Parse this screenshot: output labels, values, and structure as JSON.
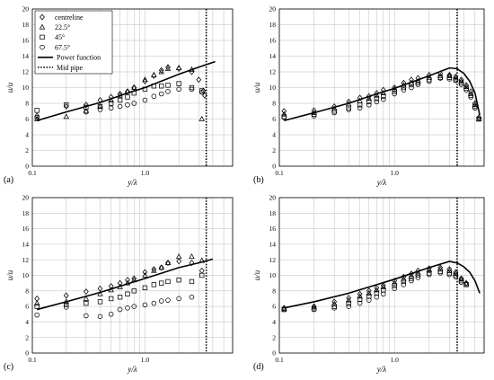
{
  "chart_data": [
    {
      "panel": "(a)",
      "type": "scatter",
      "xlabel": "y/λ",
      "ylabel": "u/u",
      "xscale": "log",
      "xlim": [
        0.1,
        6
      ],
      "ylim": [
        0,
        20
      ],
      "xticks": [
        "0.1",
        "1.0"
      ],
      "yticks": [
        "0",
        "2",
        "4",
        "6",
        "8",
        "10",
        "12",
        "14",
        "16",
        "18",
        "20"
      ],
      "grid": true,
      "legend": "top-left",
      "legend_entries": [
        "centreline",
        "22.5°",
        "45°",
        "67.5°",
        "Power function",
        "Mid pipe"
      ],
      "mid_pipe_x": 3.5,
      "series": [
        {
          "name": "centreline",
          "marker": "diamond",
          "x": [
            0.11,
            0.2,
            0.3,
            0.4,
            0.5,
            0.6,
            0.7,
            0.8,
            1.0,
            1.2,
            1.4,
            1.6,
            2.0,
            2.6,
            3.0,
            3.3,
            3.4
          ],
          "y": [
            6.4,
            7.6,
            7.8,
            8.4,
            8.8,
            9.2,
            9.5,
            10.0,
            10.8,
            11.5,
            12.2,
            12.6,
            12.4,
            12.0,
            11.0,
            9.6,
            9.0
          ]
        },
        {
          "name": "22.5°",
          "marker": "triangle",
          "x": [
            0.11,
            0.2,
            0.3,
            0.4,
            0.5,
            0.6,
            0.7,
            0.8,
            1.0,
            1.2,
            1.4,
            1.6,
            2.0,
            2.6,
            3.2
          ],
          "y": [
            6.0,
            6.3,
            7.0,
            7.6,
            8.4,
            9.0,
            9.5,
            10.0,
            11.0,
            11.6,
            12.0,
            12.4,
            12.5,
            12.3,
            6.0
          ]
        },
        {
          "name": "45°",
          "marker": "square",
          "x": [
            0.11,
            0.2,
            0.3,
            0.4,
            0.5,
            0.6,
            0.7,
            0.8,
            1.0,
            1.2,
            1.4,
            1.6,
            2.0,
            2.6,
            3.2
          ],
          "y": [
            7.1,
            7.8,
            7.5,
            7.6,
            8.0,
            8.4,
            8.8,
            9.3,
            9.8,
            10.2,
            10.2,
            10.3,
            10.5,
            10.0,
            9.6
          ]
        },
        {
          "name": "67.5°",
          "marker": "circle",
          "x": [
            0.11,
            0.3,
            0.4,
            0.5,
            0.6,
            0.7,
            0.8,
            1.0,
            1.2,
            1.4,
            1.6,
            2.0,
            2.6,
            3.2
          ],
          "y": [
            6.2,
            6.9,
            7.2,
            7.4,
            7.6,
            7.8,
            8.0,
            8.4,
            8.9,
            9.2,
            9.5,
            9.8,
            9.8,
            9.4
          ]
        },
        {
          "name": "Power function",
          "line": true,
          "x": [
            0.11,
            0.2,
            0.4,
            0.7,
            1.0,
            2.0,
            3.0,
            4.2
          ],
          "y": [
            5.8,
            6.9,
            8.1,
            9.3,
            10.0,
            11.7,
            12.6,
            13.3
          ]
        }
      ]
    },
    {
      "panel": "(b)",
      "type": "scatter",
      "xlabel": "y/λ",
      "ylabel": "u/u",
      "xscale": "log",
      "xlim": [
        0.1,
        6
      ],
      "ylim": [
        0,
        20
      ],
      "xticks": [
        "0.1",
        "1.0"
      ],
      "yticks": [
        "0",
        "2",
        "4",
        "6",
        "8",
        "10",
        "12",
        "14",
        "16",
        "18",
        "20"
      ],
      "grid": true,
      "mid_pipe_x": 3.5,
      "series": [
        {
          "marker": "diamond",
          "x": [
            0.11,
            0.2,
            0.3,
            0.4,
            0.5,
            0.6,
            0.7,
            0.8,
            1.0,
            1.2,
            1.4,
            1.6,
            2.0,
            2.5,
            3.0,
            3.4,
            3.8,
            4.2,
            4.6,
            5.0,
            5.4
          ],
          "y": [
            7.0,
            7.1,
            7.6,
            8.2,
            8.7,
            8.9,
            9.3,
            9.7,
            10.0,
            10.6,
            11.0,
            11.2,
            11.6,
            11.8,
            11.6,
            11.4,
            11.0,
            10.3,
            9.5,
            8.0,
            6.2
          ]
        },
        {
          "marker": "triangle",
          "x": [
            0.11,
            0.2,
            0.3,
            0.4,
            0.5,
            0.6,
            0.7,
            0.8,
            1.0,
            1.2,
            1.4,
            1.6,
            2.0,
            2.5,
            3.0,
            3.4,
            3.8,
            4.2,
            4.6,
            5.0,
            5.4
          ],
          "y": [
            6.6,
            6.8,
            7.3,
            7.9,
            8.3,
            8.6,
            9.0,
            9.3,
            9.8,
            10.3,
            10.6,
            10.8,
            11.3,
            11.5,
            11.5,
            11.2,
            10.8,
            10.1,
            9.2,
            7.8,
            6.0
          ]
        },
        {
          "marker": "square",
          "x": [
            0.11,
            0.2,
            0.3,
            0.4,
            0.5,
            0.6,
            0.7,
            0.8,
            1.0,
            1.2,
            1.4,
            1.6,
            2.0,
            2.5,
            3.0,
            3.4,
            3.8,
            4.2,
            4.6,
            5.0,
            5.4
          ],
          "y": [
            6.3,
            6.6,
            7.0,
            7.4,
            7.8,
            8.2,
            8.6,
            8.9,
            9.5,
            10.0,
            10.4,
            10.6,
            11.0,
            11.3,
            11.3,
            11.0,
            10.6,
            9.9,
            9.0,
            7.6,
            6.0
          ]
        },
        {
          "marker": "circle",
          "x": [
            0.11,
            0.2,
            0.3,
            0.4,
            0.5,
            0.6,
            0.7,
            0.8,
            1.0,
            1.2,
            1.4,
            1.6,
            2.0,
            2.5,
            3.0,
            3.4,
            3.8,
            4.2,
            4.6,
            5.0,
            5.4
          ],
          "y": [
            6.2,
            6.4,
            6.8,
            7.2,
            7.4,
            7.8,
            8.2,
            8.5,
            9.2,
            9.7,
            10.0,
            10.4,
            10.8,
            11.2,
            11.1,
            10.9,
            10.4,
            9.7,
            8.8,
            7.4,
            6.0
          ]
        },
        {
          "line": true,
          "x": [
            0.11,
            0.2,
            0.4,
            0.7,
            1.0,
            2.0,
            3.0,
            3.5,
            4.0,
            4.5,
            5.0,
            5.5
          ],
          "y": [
            5.8,
            6.8,
            8.0,
            9.2,
            9.9,
            11.5,
            12.5,
            12.4,
            11.8,
            10.8,
            9.3,
            6.5
          ]
        }
      ]
    },
    {
      "panel": "(c)",
      "type": "scatter",
      "xlabel": "y/λ",
      "ylabel": "u/u",
      "xscale": "log",
      "xlim": [
        0.1,
        6
      ],
      "ylim": [
        0,
        20
      ],
      "xticks": [
        "0.1",
        "1.0"
      ],
      "yticks": [
        "0",
        "2",
        "4",
        "6",
        "8",
        "10",
        "12",
        "14",
        "16",
        "18",
        "20"
      ],
      "grid": true,
      "mid_pipe_x": 3.5,
      "series": [
        {
          "marker": "diamond",
          "x": [
            0.11,
            0.2,
            0.3,
            0.4,
            0.5,
            0.6,
            0.7,
            0.8,
            1.0,
            1.2,
            1.4,
            1.6,
            2.0,
            2.6,
            3.2
          ],
          "y": [
            7.0,
            7.4,
            7.9,
            8.3,
            8.6,
            9.0,
            9.4,
            9.6,
            10.4,
            10.8,
            11.0,
            11.6,
            11.8,
            11.6,
            10.6
          ]
        },
        {
          "marker": "triangle",
          "x": [
            0.11,
            0.2,
            0.3,
            0.4,
            0.5,
            0.6,
            0.7,
            0.8,
            1.0,
            1.2,
            1.4,
            1.6,
            2.0,
            2.6,
            3.2
          ],
          "y": [
            6.4,
            6.6,
            7.0,
            7.6,
            8.1,
            8.5,
            9.0,
            9.4,
            10.0,
            10.6,
            11.0,
            11.6,
            12.4,
            12.4,
            11.9
          ]
        },
        {
          "marker": "square",
          "x": [
            0.11,
            0.2,
            0.3,
            0.4,
            0.5,
            0.6,
            0.7,
            0.8,
            1.0,
            1.2,
            1.4,
            1.6,
            2.0,
            2.6,
            3.2
          ],
          "y": [
            6.0,
            6.2,
            6.4,
            6.6,
            7.0,
            7.2,
            7.6,
            8.0,
            8.4,
            8.8,
            9.0,
            9.2,
            9.4,
            9.2,
            10.0
          ]
        },
        {
          "marker": "circle",
          "x": [
            0.11,
            0.2,
            0.3,
            0.4,
            0.5,
            0.6,
            0.7,
            0.8,
            1.0,
            1.2,
            1.4,
            1.6,
            2.0,
            2.6
          ],
          "y": [
            4.9,
            5.9,
            4.8,
            4.7,
            5.0,
            5.6,
            5.8,
            6.0,
            6.2,
            6.4,
            6.7,
            6.8,
            7.0,
            7.2
          ]
        },
        {
          "line": true,
          "x": [
            0.11,
            0.2,
            0.4,
            0.7,
            1.0,
            2.0,
            3.0,
            4.0
          ],
          "y": [
            5.6,
            6.6,
            7.8,
            8.9,
            9.6,
            11.0,
            11.6,
            12.1
          ]
        }
      ]
    },
    {
      "panel": "(d)",
      "type": "scatter",
      "xlabel": "y/λ",
      "ylabel": "u/u",
      "xscale": "log",
      "xlim": [
        0.1,
        6
      ],
      "ylim": [
        0,
        20
      ],
      "xticks": [
        "0.1",
        "1.0"
      ],
      "yticks": [
        "0",
        "2",
        "4",
        "6",
        "8",
        "10",
        "12",
        "14",
        "16",
        "18",
        "20"
      ],
      "grid": true,
      "mid_pipe_x": 3.5,
      "series": [
        {
          "marker": "diamond",
          "x": [
            0.11,
            0.2,
            0.3,
            0.4,
            0.5,
            0.6,
            0.7,
            0.8,
            1.0,
            1.2,
            1.4,
            1.6,
            2.0,
            2.5,
            3.0,
            3.4,
            3.8,
            4.2
          ],
          "y": [
            5.8,
            6.0,
            6.6,
            7.1,
            7.6,
            8.0,
            8.4,
            8.7,
            9.3,
            9.8,
            10.2,
            10.6,
            10.9,
            11.0,
            10.8,
            10.4,
            9.6,
            9.0
          ]
        },
        {
          "marker": "triangle",
          "x": [
            0.11,
            0.2,
            0.3,
            0.4,
            0.5,
            0.6,
            0.7,
            0.8,
            1.0,
            1.2,
            1.4,
            1.6,
            2.0,
            2.5,
            3.0,
            3.4,
            3.8,
            4.2
          ],
          "y": [
            5.7,
            5.9,
            6.3,
            6.8,
            7.3,
            7.7,
            8.1,
            8.5,
            9.0,
            9.5,
            9.9,
            10.3,
            10.7,
            10.8,
            10.6,
            10.2,
            9.5,
            8.9
          ]
        },
        {
          "marker": "square",
          "x": [
            0.11,
            0.2,
            0.3,
            0.4,
            0.5,
            0.6,
            0.7,
            0.8,
            1.0,
            1.2,
            1.4,
            1.6,
            2.0,
            2.5,
            3.0,
            3.4,
            3.8,
            4.2
          ],
          "y": [
            5.6,
            5.7,
            6.0,
            6.4,
            6.9,
            7.3,
            7.7,
            8.1,
            8.7,
            9.2,
            9.6,
            10.0,
            10.3,
            10.5,
            10.3,
            10.0,
            9.3,
            8.8
          ]
        },
        {
          "marker": "circle",
          "x": [
            0.11,
            0.2,
            0.3,
            0.4,
            0.5,
            0.6,
            0.7,
            0.8,
            1.0,
            1.2,
            1.4,
            1.6,
            2.0,
            2.5,
            3.0,
            3.4,
            3.8
          ],
          "y": [
            5.6,
            5.6,
            5.8,
            6.0,
            6.4,
            6.8,
            7.2,
            7.6,
            8.3,
            8.8,
            9.3,
            9.7,
            10.1,
            10.3,
            10.1,
            9.8,
            9.1
          ]
        },
        {
          "line": true,
          "x": [
            0.11,
            0.2,
            0.4,
            0.7,
            1.0,
            2.0,
            3.0,
            3.5,
            4.0,
            4.5,
            5.0,
            5.5
          ],
          "y": [
            5.8,
            6.6,
            7.7,
            8.8,
            9.5,
            11.0,
            11.8,
            11.6,
            11.1,
            10.4,
            9.3,
            7.7
          ]
        }
      ]
    }
  ]
}
